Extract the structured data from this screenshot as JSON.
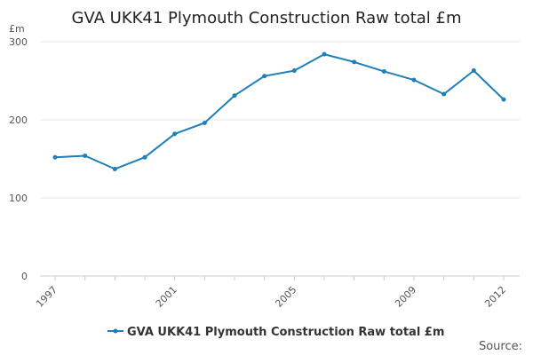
{
  "chart_data": {
    "type": "line",
    "title": "GVA UKK41 Plymouth Construction Raw total £m",
    "ylabel": "£m",
    "xlabel": "",
    "ylim": [
      0,
      300
    ],
    "yticks": [
      0,
      100,
      200,
      300
    ],
    "xticks": [
      1997,
      2001,
      2005,
      2009,
      2012
    ],
    "grid": true,
    "legend_position": "bottom",
    "source_label": "Source:",
    "line_color": "#1f7fb8",
    "series": [
      {
        "name": "GVA UKK41 Plymouth Construction Raw total £m",
        "x": [
          1997,
          1998,
          1999,
          2000,
          2001,
          2002,
          2003,
          2004,
          2005,
          2006,
          2007,
          2008,
          2009,
          2010,
          2011,
          2012
        ],
        "values": [
          152,
          154,
          137,
          152,
          182,
          196,
          231,
          256,
          263,
          284,
          274,
          262,
          251,
          233,
          263,
          226
        ]
      }
    ]
  }
}
